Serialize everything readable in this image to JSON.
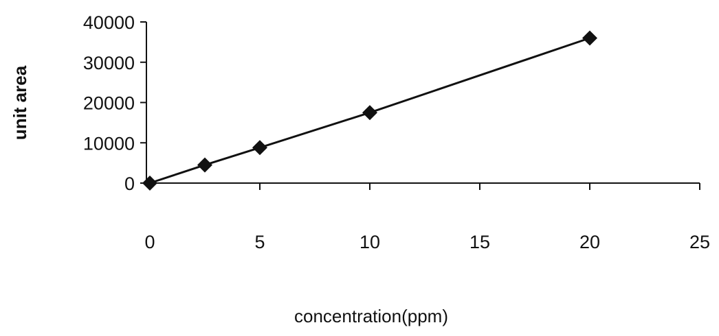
{
  "chart_data": {
    "type": "line",
    "x_label": "concentration(ppm)",
    "y_label": "unit area",
    "series": [
      {
        "color": "#111111",
        "x": [
          0,
          2.5,
          5,
          10,
          20
        ],
        "values": [
          0,
          4500,
          8800,
          17500,
          36000
        ]
      }
    ],
    "xlim": [
      0,
      25
    ],
    "xticks": [
      0,
      5,
      10,
      15,
      20,
      25
    ],
    "ylim": [
      0,
      40000
    ],
    "yticks": [
      0,
      10000,
      20000,
      30000,
      40000
    ],
    "grid": false
  }
}
